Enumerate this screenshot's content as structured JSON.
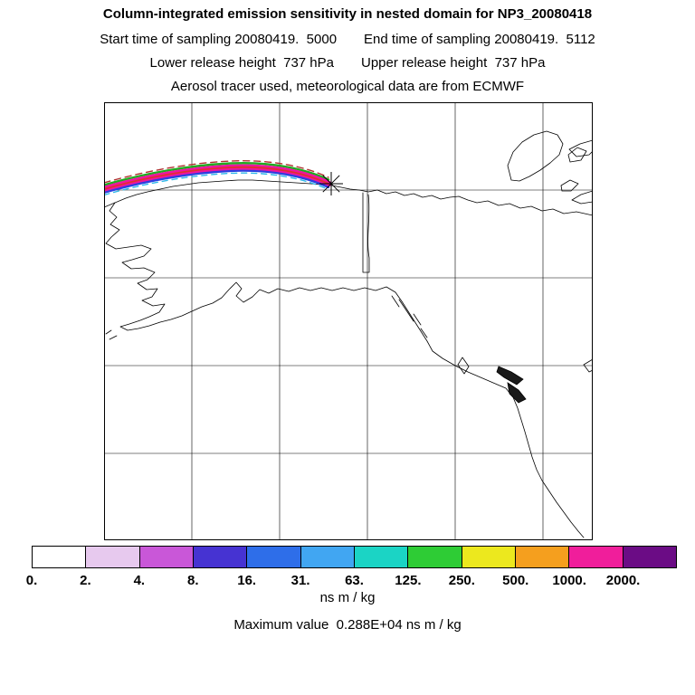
{
  "header": {
    "title": "Column-integrated emission sensitivity in nested domain for NP3_20080418",
    "start_label": "Start time of sampling 20080419.  5000",
    "end_label": "End time of sampling 20080419.  5112",
    "lower_label": "Lower release height  737 hPa",
    "upper_label": "Upper release height  737 hPa",
    "tracer_label": "Aerosol tracer used, meteorological data are from ECMWF"
  },
  "colorbar": {
    "units": "ns m / kg",
    "tick_labels": [
      "0.",
      "2.",
      "4.",
      "8.",
      "16.",
      "31.",
      "63.",
      "125.",
      "250.",
      "500.",
      "1000.",
      "2000."
    ],
    "colors": [
      "#ffffff",
      "#e7c9ee",
      "#c957d8",
      "#4633d2",
      "#2e6ee9",
      "#41a6f2",
      "#1bd4c5",
      "#2ecc35",
      "#ece81e",
      "#f59f1e",
      "#f01e9b",
      "#6b0c85"
    ]
  },
  "footer": {
    "max_value_label": "Maximum value  0.288E+04 ns m / kg"
  },
  "chart_data": {
    "type": "heatmap",
    "title": "Column-integrated emission sensitivity in nested domain for NP3_20080418",
    "region": "Alaska, western Canada and northeast Pacific coastline with lat/lon grid",
    "levels": [
      0,
      2,
      4,
      8,
      16,
      31,
      63,
      125,
      250,
      500,
      1000,
      2000
    ],
    "level_colors": [
      "#ffffff",
      "#e7c9ee",
      "#c957d8",
      "#4633d2",
      "#2e6ee9",
      "#41a6f2",
      "#1bd4c5",
      "#2ecc35",
      "#ece81e",
      "#f59f1e",
      "#f01e9b",
      "#6b0c85"
    ],
    "units": "ns m / kg",
    "max_value": "0.288E+04 ns m / kg",
    "start_time": "20080419.  5000",
    "end_time": "20080419.  5112",
    "lower_release_height": "737 hPa",
    "upper_release_height": "737 hPa",
    "tracer": "Aerosol",
    "meteorology": "ECMWF",
    "release_marker": {
      "symbol": "asterisk",
      "location": "on the Arctic coast of Alaska, upper middle of the domain"
    },
    "plume": "narrow high-sensitivity multicolored band (magenta core with green/cyan/blue fringes) arcing westward from the release marker along the Arctic coastline to the left edge of the domain",
    "legend_position": "horizontal colorbar below map, last color segment represents values above 2000"
  }
}
